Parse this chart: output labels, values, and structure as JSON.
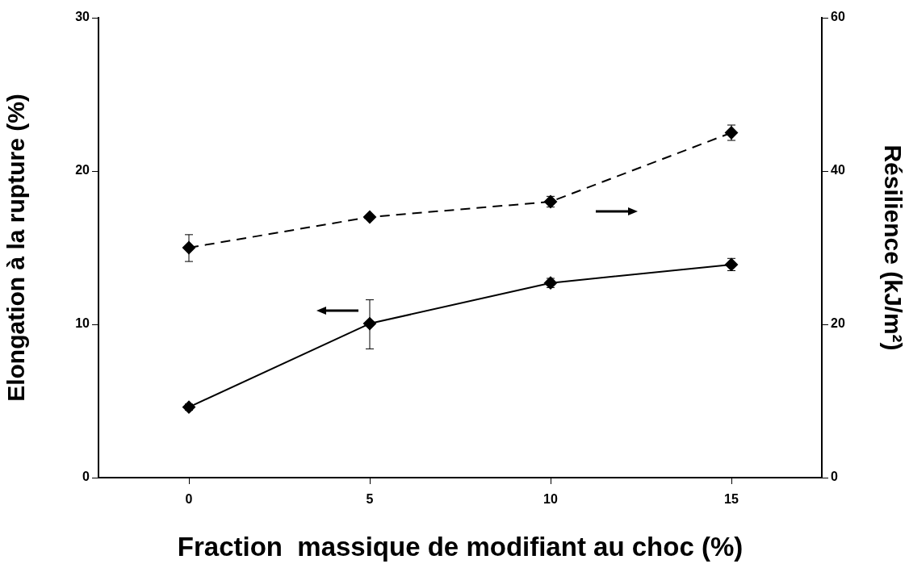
{
  "chart_data": {
    "type": "line",
    "xlabel": "Fraction  massique de modifiant au choc (%)",
    "ylabel": "Elongation à la rupture (%)",
    "y2label": "Résilience (kJ/m²)",
    "x": [
      0,
      5,
      10,
      15
    ],
    "xlim": [
      -2.5,
      17.5
    ],
    "xticks": [
      0,
      5,
      10,
      15
    ],
    "ylim": [
      0,
      30
    ],
    "yticks": [
      0,
      10,
      20,
      30
    ],
    "y2lim": [
      0,
      60
    ],
    "y2ticks": [
      0,
      20,
      40,
      60
    ],
    "grid": false,
    "legend": false,
    "marker": "diamond",
    "series": [
      {
        "color": "#000000",
        "values": [
          4.6,
          10.05,
          12.7,
          13.9
        ],
        "errors": [
          0.2,
          [
            8.4,
            11.6
          ],
          0.3,
          0.4
        ],
        "line_style": "solid"
      },
      {
        "color": "#000000",
        "values": [
          30,
          34,
          36,
          45
        ],
        "errors": [
          [
            28.2,
            31.7
          ],
          null,
          0.7,
          1
        ],
        "line_style": "dashed",
        "axis": "y2"
      }
    ]
  }
}
